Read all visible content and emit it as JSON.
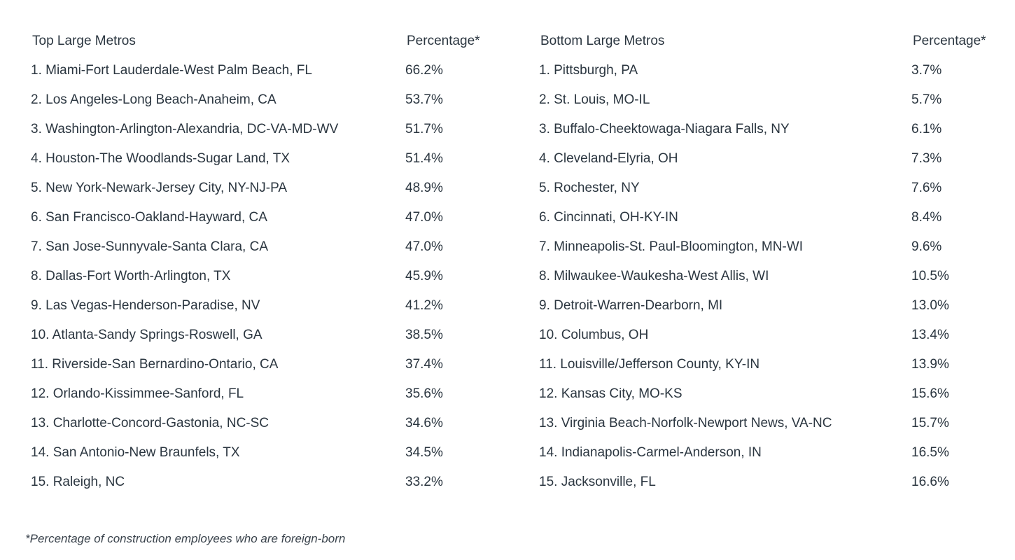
{
  "top": {
    "heading": "Top Large Metros",
    "pct_heading": "Percentage*",
    "rows": [
      {
        "name": "1. Miami-Fort Lauderdale-West Palm Beach, FL",
        "pct": "66.2%"
      },
      {
        "name": "2. Los Angeles-Long Beach-Anaheim, CA",
        "pct": "53.7%"
      },
      {
        "name": "3. Washington-Arlington-Alexandria, DC-VA-MD-WV",
        "pct": "51.7%"
      },
      {
        "name": "4. Houston-The Woodlands-Sugar Land, TX",
        "pct": "51.4%"
      },
      {
        "name": "5. New York-Newark-Jersey City, NY-NJ-PA",
        "pct": "48.9%"
      },
      {
        "name": "6. San Francisco-Oakland-Hayward, CA",
        "pct": "47.0%"
      },
      {
        "name": "7. San Jose-Sunnyvale-Santa Clara, CA",
        "pct": "47.0%"
      },
      {
        "name": "8. Dallas-Fort Worth-Arlington, TX",
        "pct": "45.9%"
      },
      {
        "name": "9. Las Vegas-Henderson-Paradise, NV",
        "pct": "41.2%"
      },
      {
        "name": "10. Atlanta-Sandy Springs-Roswell, GA",
        "pct": "38.5%"
      },
      {
        "name": "11. Riverside-San Bernardino-Ontario, CA",
        "pct": "37.4%"
      },
      {
        "name": "12. Orlando-Kissimmee-Sanford, FL",
        "pct": "35.6%"
      },
      {
        "name": "13. Charlotte-Concord-Gastonia, NC-SC",
        "pct": "34.6%"
      },
      {
        "name": "14. San Antonio-New Braunfels, TX",
        "pct": "34.5%"
      },
      {
        "name": "15. Raleigh, NC",
        "pct": "33.2%"
      }
    ]
  },
  "bottom": {
    "heading": "Bottom Large Metros",
    "pct_heading": "Percentage*",
    "rows": [
      {
        "name": "1. Pittsburgh, PA",
        "pct": "3.7%"
      },
      {
        "name": "2. St. Louis, MO-IL",
        "pct": "5.7%"
      },
      {
        "name": "3. Buffalo-Cheektowaga-Niagara Falls, NY",
        "pct": "6.1%"
      },
      {
        "name": "4. Cleveland-Elyria, OH",
        "pct": "7.3%"
      },
      {
        "name": "5. Rochester, NY",
        "pct": "7.6%"
      },
      {
        "name": "6. Cincinnati, OH-KY-IN",
        "pct": "8.4%"
      },
      {
        "name": "7. Minneapolis-St. Paul-Bloomington, MN-WI",
        "pct": "9.6%"
      },
      {
        "name": "8. Milwaukee-Waukesha-West Allis, WI",
        "pct": "10.5%"
      },
      {
        "name": "9. Detroit-Warren-Dearborn, MI",
        "pct": "13.0%"
      },
      {
        "name": "10. Columbus, OH",
        "pct": "13.4%"
      },
      {
        "name": "11. Louisville/Jefferson County, KY-IN",
        "pct": "13.9%"
      },
      {
        "name": "12. Kansas City, MO-KS",
        "pct": "15.6%"
      },
      {
        "name": "13. Virginia Beach-Norfolk-Newport News, VA-NC",
        "pct": "15.7%"
      },
      {
        "name": "14. Indianapolis-Carmel-Anderson, IN",
        "pct": "16.5%"
      },
      {
        "name": "15. Jacksonville, FL",
        "pct": "16.6%"
      }
    ]
  },
  "footnote": "*Percentage of construction employees who are foreign-born"
}
